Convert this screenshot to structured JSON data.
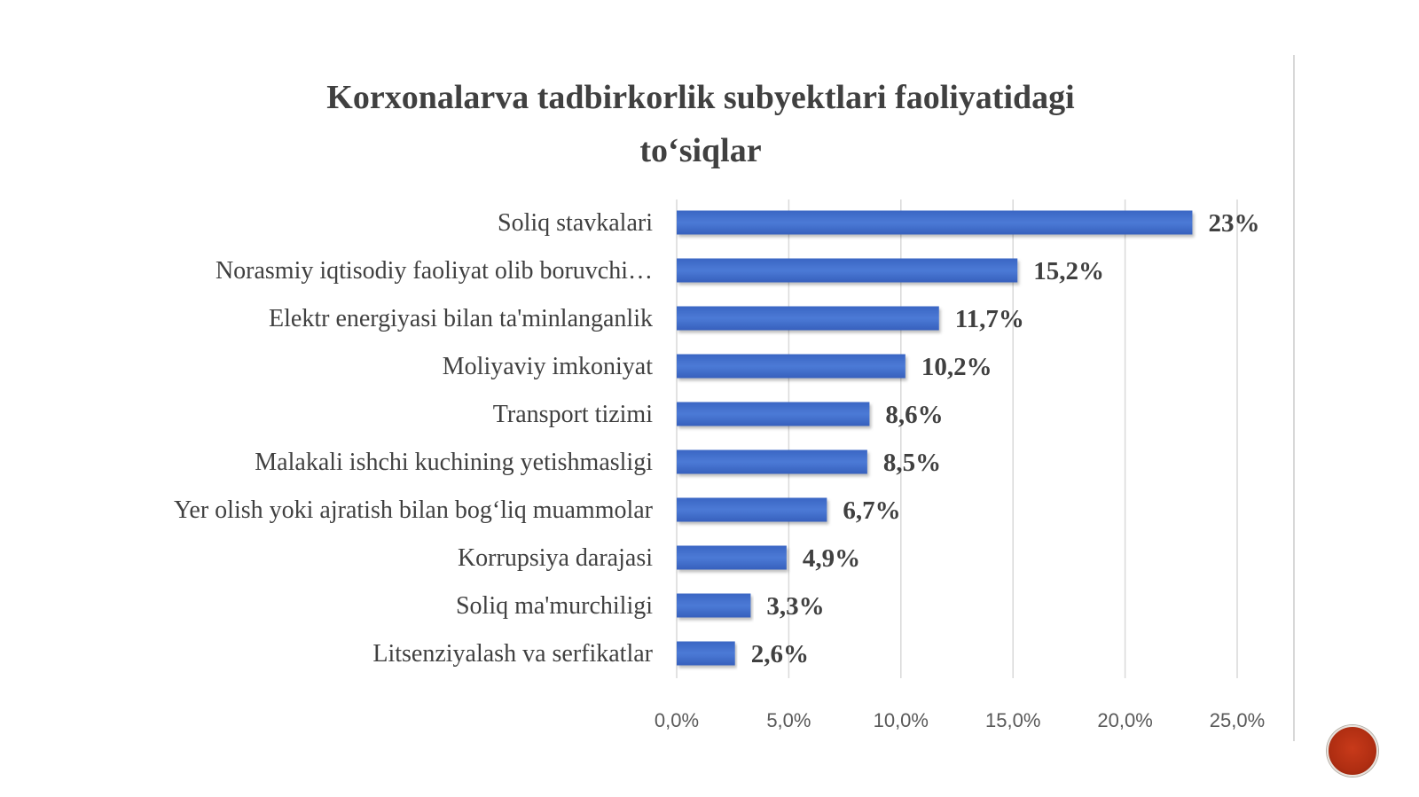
{
  "chart_data": {
    "type": "bar",
    "orientation": "horizontal",
    "title": "Korxonalarva tadbirkorlik subyektlari faoliyatidagi\nto‘siqlar",
    "categories": [
      "Soliq stavkalari",
      "Norasmiy iqtisodiy faoliyat olib boruvchi…",
      "Elektr energiyasi bilan ta'minlanganlik",
      "Moliyaviy imkoniyat",
      "Transport tizimi",
      "Malakali ishchi kuchining yetishmasligi",
      "Yer olish yoki ajratish bilan bog‘liq muammolar",
      "Korrupsiya darajasi",
      "Soliq ma'murchiligi",
      "Litsenziyalash va serfikatlar"
    ],
    "values": [
      23,
      15.2,
      11.7,
      10.2,
      8.6,
      8.5,
      6.7,
      4.9,
      3.3,
      2.6
    ],
    "data_labels": [
      "23%",
      "15,2%",
      "11,7%",
      "10,2%",
      "8,6%",
      "8,5%",
      "6,7%",
      "4,9%",
      "3,3%",
      "2,6%"
    ],
    "xlim": [
      0,
      25
    ],
    "x_ticks": [
      0,
      5,
      10,
      15,
      20,
      25
    ],
    "x_tick_labels": [
      "0,0%",
      "5,0%",
      "10,0%",
      "15,0%",
      "20,0%",
      "25,0%"
    ],
    "xlabel": "",
    "ylabel": "",
    "grid": true,
    "legend": "none",
    "bar_color": "#4472C4"
  }
}
